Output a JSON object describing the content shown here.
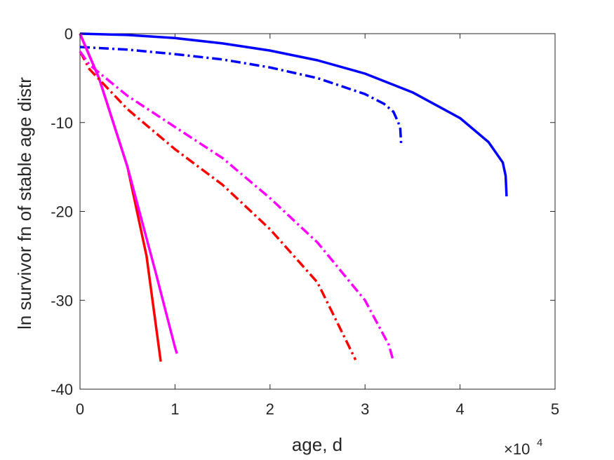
{
  "chart_data": {
    "type": "line",
    "xlabel": "age, d",
    "ylabel": "ln survivor fn of stable age distr",
    "xlim": [
      0,
      5
    ],
    "ylim": [
      -40,
      0
    ],
    "x_ticks": [
      "0",
      "1",
      "2",
      "3",
      "4",
      "5"
    ],
    "y_ticks": [
      "0",
      "-10",
      "-20",
      "-30",
      "-40"
    ],
    "x_multiplier_base": "×10",
    "x_multiplier_exp": "4",
    "grid": false,
    "series": [
      {
        "color": "#0000ff",
        "style": "solid",
        "points": [
          [
            0,
            0
          ],
          [
            0.5,
            -0.15
          ],
          [
            1,
            -0.5
          ],
          [
            1.5,
            -1.1
          ],
          [
            2,
            -1.9
          ],
          [
            2.5,
            -3
          ],
          [
            3,
            -4.5
          ],
          [
            3.5,
            -6.6
          ],
          [
            4,
            -9.5
          ],
          [
            4.3,
            -12.2
          ],
          [
            4.45,
            -14.5
          ],
          [
            4.48,
            -16
          ],
          [
            4.49,
            -18.3
          ]
        ]
      },
      {
        "color": "#0000ff",
        "style": "dashdot",
        "points": [
          [
            0,
            -1.5
          ],
          [
            0.5,
            -1.8
          ],
          [
            1,
            -2.3
          ],
          [
            1.5,
            -2.9
          ],
          [
            2,
            -3.8
          ],
          [
            2.5,
            -5
          ],
          [
            3,
            -6.8
          ],
          [
            3.2,
            -7.9
          ],
          [
            3.3,
            -8.8
          ],
          [
            3.37,
            -10.5
          ],
          [
            3.38,
            -12.5
          ]
        ]
      },
      {
        "color": "#ff0000",
        "style": "solid",
        "points": [
          [
            0,
            0
          ],
          [
            0.2,
            -5
          ],
          [
            0.5,
            -15
          ],
          [
            0.7,
            -25
          ],
          [
            0.85,
            -36.9
          ]
        ]
      },
      {
        "color": "#ff00ff",
        "style": "solid",
        "points": [
          [
            0,
            0
          ],
          [
            0.2,
            -5
          ],
          [
            0.5,
            -15
          ],
          [
            0.8,
            -27
          ],
          [
            1.0,
            -35.3
          ],
          [
            1.02,
            -36
          ]
        ]
      },
      {
        "color": "#ff0000",
        "style": "dashdot",
        "points": [
          [
            0,
            -2
          ],
          [
            0.1,
            -4
          ],
          [
            0.5,
            -8.5
          ],
          [
            1,
            -13
          ],
          [
            1.5,
            -17
          ],
          [
            2,
            -22
          ],
          [
            2.5,
            -28
          ],
          [
            2.8,
            -34.5
          ],
          [
            2.9,
            -36.7
          ]
        ]
      },
      {
        "color": "#ff00ff",
        "style": "dashdot",
        "points": [
          [
            0,
            -2
          ],
          [
            0.1,
            -3.5
          ],
          [
            0.5,
            -7
          ],
          [
            1,
            -10.5
          ],
          [
            1.5,
            -14
          ],
          [
            2,
            -18.5
          ],
          [
            2.5,
            -23.5
          ],
          [
            3,
            -30
          ],
          [
            3.25,
            -35
          ],
          [
            3.3,
            -36.9
          ]
        ]
      }
    ]
  }
}
